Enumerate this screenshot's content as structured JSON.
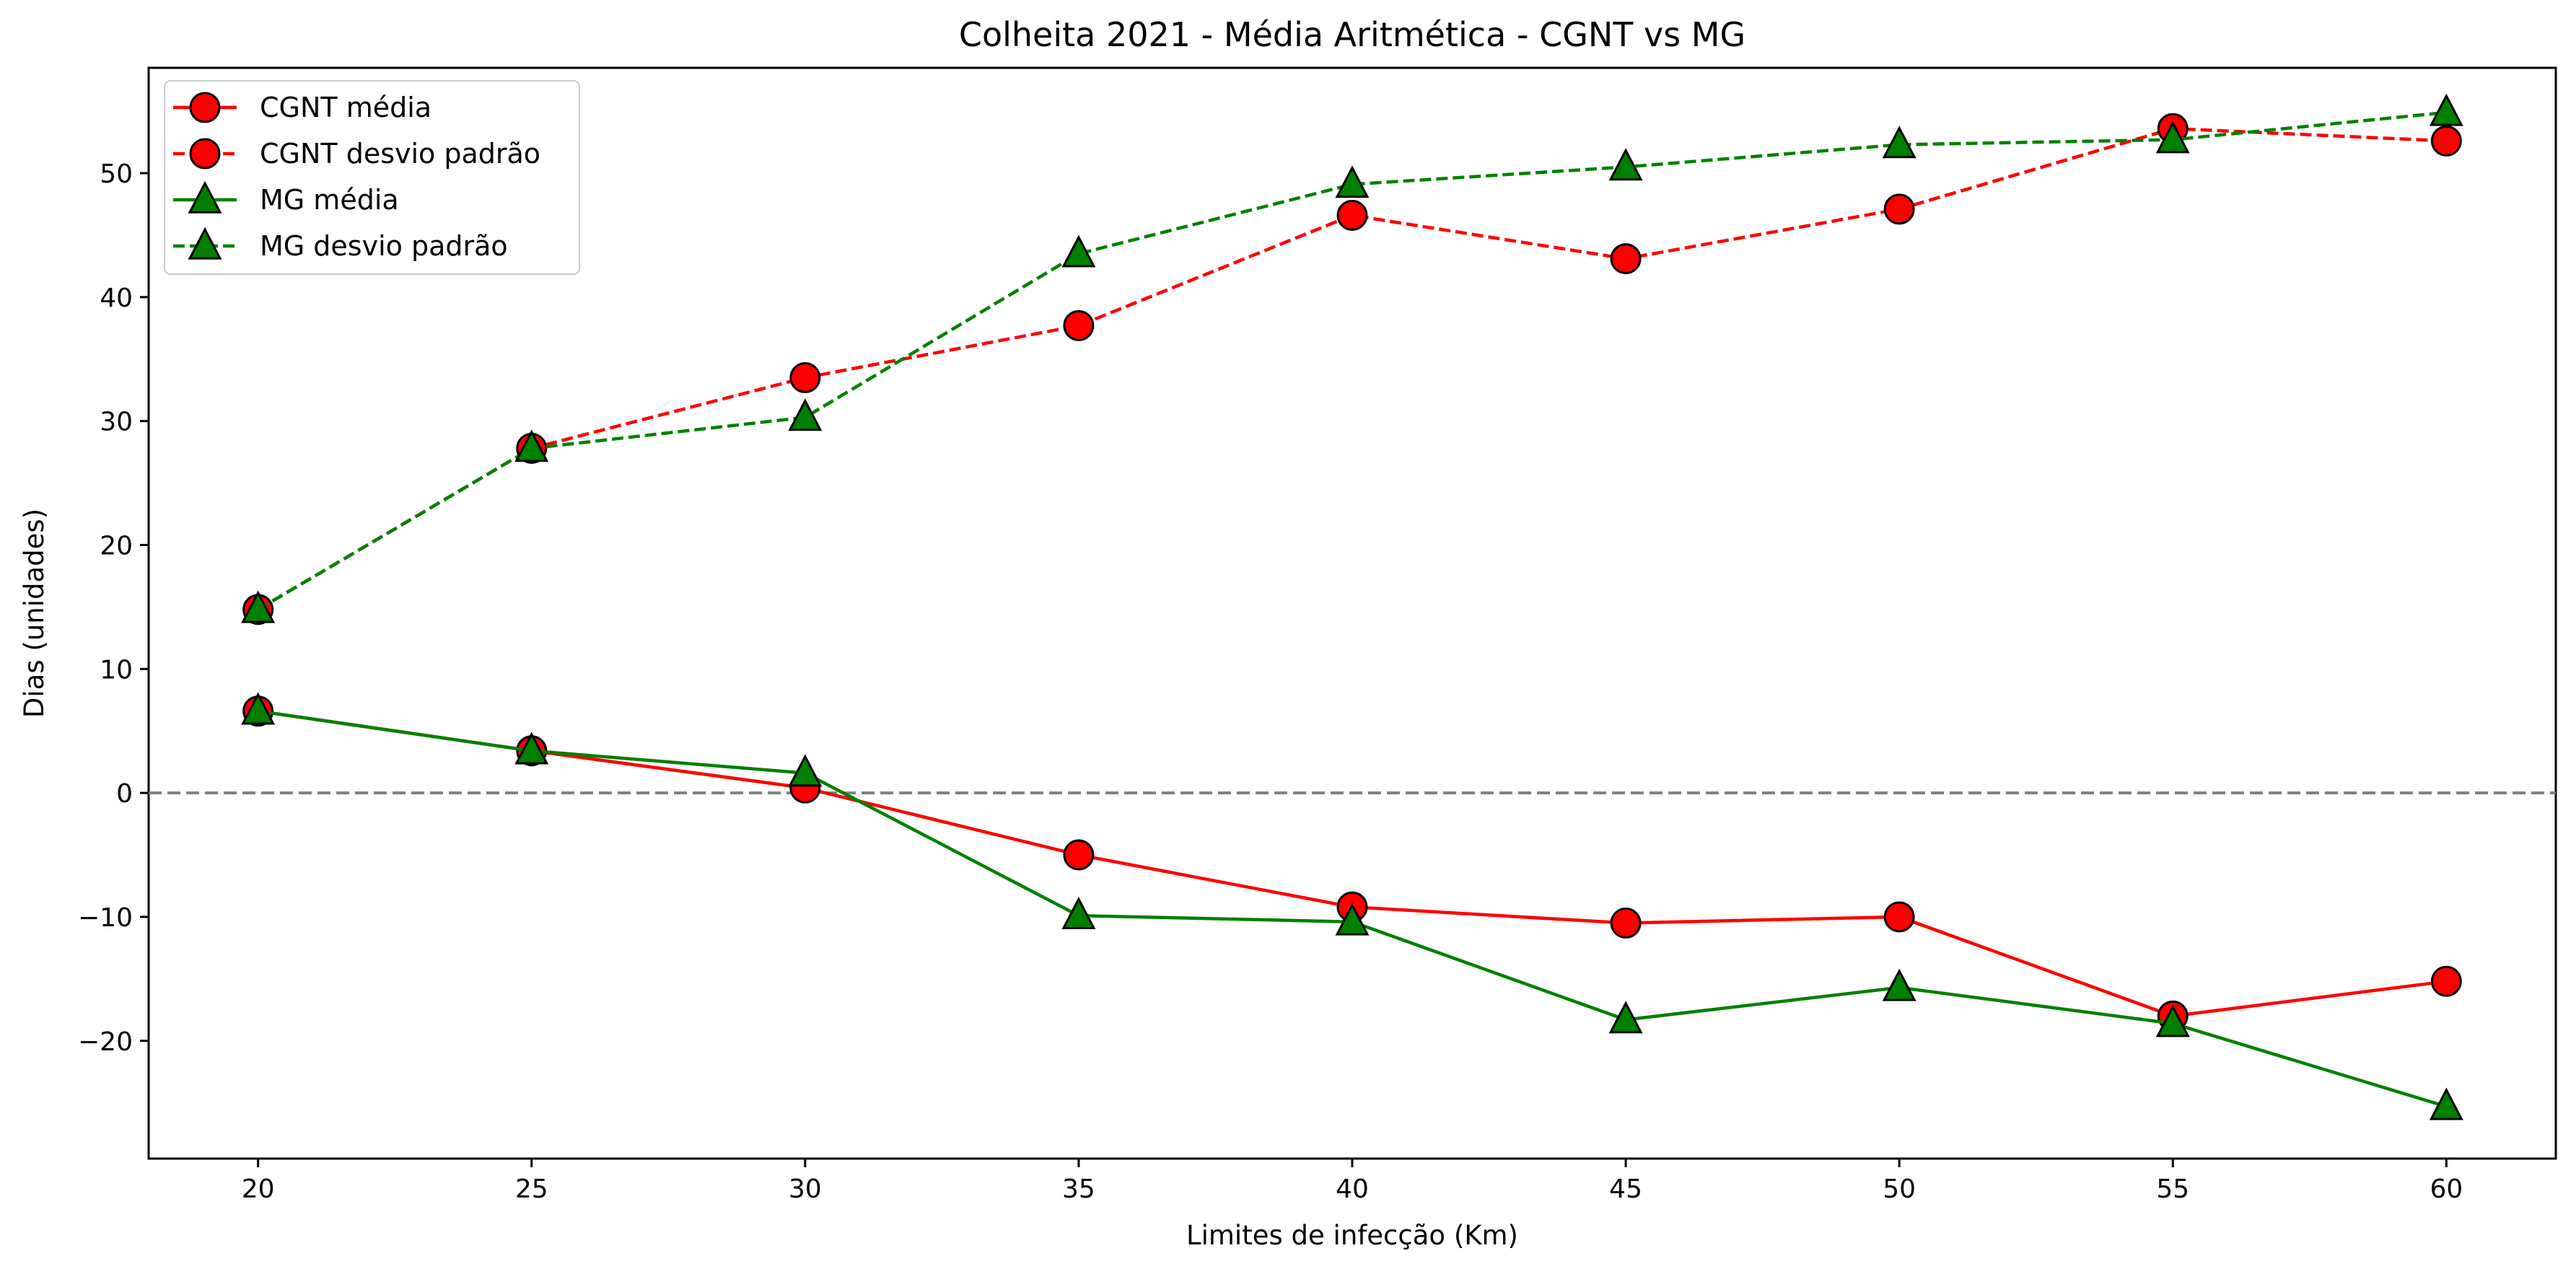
{
  "chart_data": {
    "type": "line",
    "title": "Colheita 2021 - Média Aritmética - CGNT vs MG",
    "xlabel": "Limites de infecção (Km)",
    "ylabel": "Dias (unidades)",
    "x": [
      20,
      25,
      30,
      35,
      40,
      45,
      50,
      55,
      60
    ],
    "xlim": [
      18,
      62
    ],
    "ylim": [
      -29.5,
      58.5
    ],
    "xticks": [
      20,
      25,
      30,
      35,
      40,
      45,
      50,
      55,
      60
    ],
    "yticks": [
      -20,
      -10,
      0,
      10,
      20,
      30,
      40,
      50
    ],
    "ytick_labels": [
      "−20",
      "−10",
      "0",
      "10",
      "20",
      "30",
      "40",
      "50"
    ],
    "grid": false,
    "legend_position": "upper left",
    "reference_line": {
      "y": 0,
      "style": "dashed",
      "color": "#808080"
    },
    "series": [
      {
        "name": "CGNT média",
        "color": "#ff0000",
        "marker": "circle",
        "linestyle": "solid",
        "values": [
          6.6,
          3.4,
          0.4,
          -5.0,
          -9.2,
          -10.5,
          -10.0,
          -18.0,
          -15.2
        ]
      },
      {
        "name": "CGNT desvio padrão",
        "color": "#ff0000",
        "marker": "circle",
        "linestyle": "dashed",
        "values": [
          14.8,
          27.8,
          33.5,
          37.7,
          46.6,
          43.1,
          47.1,
          53.6,
          52.6
        ]
      },
      {
        "name": "MG média",
        "color": "#008000",
        "marker": "triangle",
        "linestyle": "solid",
        "values": [
          6.6,
          3.4,
          1.6,
          -9.9,
          -10.4,
          -18.3,
          -15.7,
          -18.6,
          -25.3
        ]
      },
      {
        "name": "MG desvio padrão",
        "color": "#008000",
        "marker": "triangle",
        "linestyle": "dashed",
        "values": [
          14.8,
          27.8,
          30.3,
          43.5,
          49.1,
          50.5,
          52.3,
          52.7,
          54.9
        ]
      }
    ]
  }
}
